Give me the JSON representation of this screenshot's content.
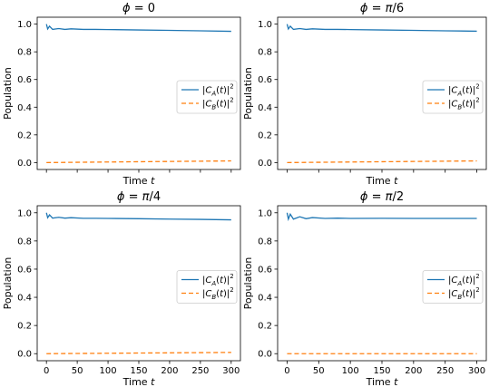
{
  "chart_data": [
    {
      "type": "line",
      "title": "ϕ = 0",
      "xlabel": "Time t",
      "ylabel": "Population",
      "xlim": [
        -15,
        315
      ],
      "ylim": [
        -0.05,
        1.05
      ],
      "xticks": [
        0,
        50,
        100,
        150,
        200,
        250,
        300
      ],
      "yticks": [
        0.0,
        0.2,
        0.4,
        0.6,
        0.8,
        1.0
      ],
      "show_xticklabels": false,
      "legend": "center-right",
      "series": [
        {
          "name": "|C_A(t)|^2",
          "color": "#1f77b4",
          "style": "solid",
          "x": [
            0,
            2,
            5,
            10,
            20,
            30,
            40,
            60,
            80,
            100,
            150,
            200,
            250,
            300
          ],
          "y": [
            1.0,
            0.965,
            0.985,
            0.962,
            0.968,
            0.962,
            0.966,
            0.962,
            0.962,
            0.961,
            0.958,
            0.955,
            0.952,
            0.948
          ]
        },
        {
          "name": "|C_B(t)|^2",
          "color": "#ff7f0e",
          "style": "dashed",
          "x": [
            0,
            50,
            100,
            150,
            200,
            250,
            300
          ],
          "y": [
            0.0,
            0.002,
            0.004,
            0.006,
            0.008,
            0.01,
            0.012
          ]
        }
      ]
    },
    {
      "type": "line",
      "title": "ϕ = π/6",
      "xlabel": "Time t",
      "ylabel": "Population",
      "xlim": [
        -15,
        315
      ],
      "ylim": [
        -0.05,
        1.05
      ],
      "xticks": [
        0,
        50,
        100,
        150,
        200,
        250,
        300
      ],
      "yticks": [
        0.0,
        0.2,
        0.4,
        0.6,
        0.8,
        1.0
      ],
      "show_xticklabels": false,
      "legend": "center-right",
      "series": [
        {
          "name": "|C_A(t)|^2",
          "color": "#1f77b4",
          "style": "solid",
          "x": [
            0,
            2,
            5,
            10,
            20,
            30,
            40,
            60,
            80,
            100,
            150,
            200,
            250,
            300
          ],
          "y": [
            1.0,
            0.965,
            0.985,
            0.962,
            0.968,
            0.962,
            0.966,
            0.962,
            0.962,
            0.961,
            0.958,
            0.955,
            0.952,
            0.949
          ]
        },
        {
          "name": "|C_B(t)|^2",
          "color": "#ff7f0e",
          "style": "dashed",
          "x": [
            0,
            50,
            100,
            150,
            200,
            250,
            300
          ],
          "y": [
            0.0,
            0.002,
            0.004,
            0.006,
            0.008,
            0.01,
            0.012
          ]
        }
      ]
    },
    {
      "type": "line",
      "title": "ϕ = π/4",
      "xlabel": "Time t",
      "ylabel": "Population",
      "xlim": [
        -15,
        315
      ],
      "ylim": [
        -0.05,
        1.05
      ],
      "xticks": [
        0,
        50,
        100,
        150,
        200,
        250,
        300
      ],
      "yticks": [
        0.0,
        0.2,
        0.4,
        0.6,
        0.8,
        1.0
      ],
      "show_xticklabels": true,
      "legend": "center-right",
      "series": [
        {
          "name": "|C_A(t)|^2",
          "color": "#1f77b4",
          "style": "solid",
          "x": [
            0,
            2,
            5,
            10,
            20,
            30,
            40,
            60,
            80,
            100,
            150,
            200,
            250,
            300
          ],
          "y": [
            1.0,
            0.965,
            0.985,
            0.962,
            0.968,
            0.962,
            0.965,
            0.961,
            0.961,
            0.96,
            0.958,
            0.955,
            0.953,
            0.95
          ]
        },
        {
          "name": "|C_B(t)|^2",
          "color": "#ff7f0e",
          "style": "dashed",
          "x": [
            0,
            50,
            100,
            150,
            200,
            250,
            300
          ],
          "y": [
            0.0,
            0.0015,
            0.003,
            0.0045,
            0.006,
            0.0075,
            0.009
          ]
        }
      ]
    },
    {
      "type": "line",
      "title": "ϕ = π/2",
      "xlabel": "Time t",
      "ylabel": "Population",
      "xlim": [
        -15,
        315
      ],
      "ylim": [
        -0.05,
        1.05
      ],
      "xticks": [
        0,
        50,
        100,
        150,
        200,
        250,
        300
      ],
      "yticks": [
        0.0,
        0.2,
        0.4,
        0.6,
        0.8,
        1.0
      ],
      "show_xticklabels": true,
      "legend": "center-right",
      "series": [
        {
          "name": "|C_A(t)|^2",
          "color": "#1f77b4",
          "style": "solid",
          "x": [
            0,
            2,
            5,
            10,
            20,
            30,
            40,
            60,
            80,
            100,
            150,
            200,
            250,
            300
          ],
          "y": [
            1.0,
            0.955,
            0.99,
            0.955,
            0.972,
            0.958,
            0.966,
            0.96,
            0.962,
            0.96,
            0.961,
            0.96,
            0.96,
            0.96
          ]
        },
        {
          "name": "|C_B(t)|^2",
          "color": "#ff7f0e",
          "style": "dashed",
          "x": [
            0,
            50,
            100,
            150,
            200,
            250,
            300
          ],
          "y": [
            0.0,
            0.0,
            0.0,
            0.0,
            0.0,
            0.0,
            0.0
          ]
        }
      ]
    }
  ]
}
